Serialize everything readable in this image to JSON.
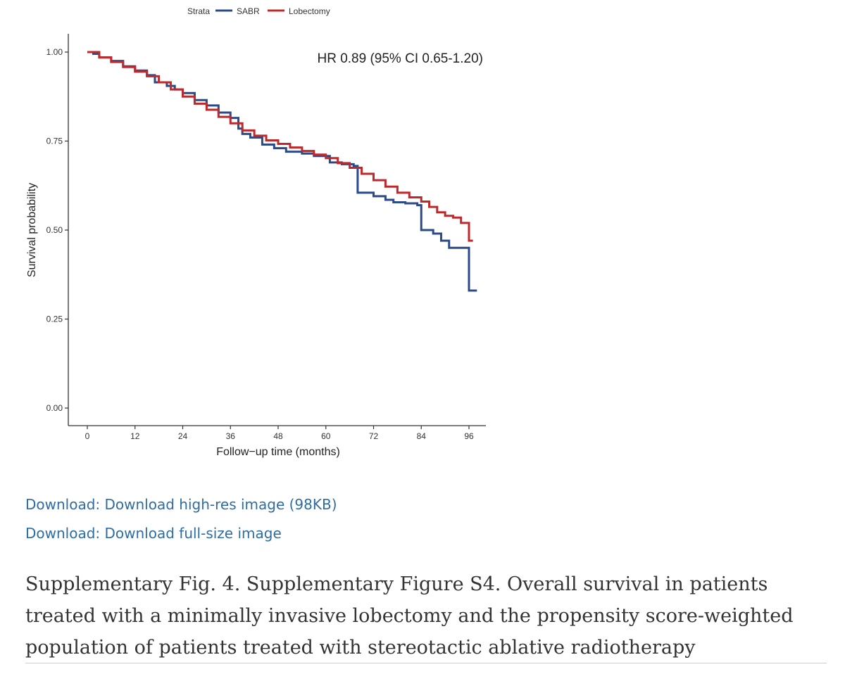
{
  "chart_data": {
    "type": "line",
    "step": true,
    "title": "",
    "xlabel": "Follow−up time (months)",
    "ylabel": "Survival probability",
    "xlim": [
      -4,
      100
    ],
    "ylim": [
      -0.05,
      1.05
    ],
    "x_ticks": [
      0,
      12,
      24,
      36,
      48,
      60,
      72,
      84,
      96
    ],
    "x_tick_labels": [
      "0",
      "12",
      "24",
      "36",
      "48",
      "60",
      "72",
      "84",
      "96"
    ],
    "y_ticks": [
      0.0,
      0.25,
      0.5,
      0.75,
      1.0
    ],
    "y_tick_labels": [
      "0.00",
      "0.25",
      "0.50",
      "0.75",
      "1.00"
    ],
    "legend": {
      "title": "Strata",
      "position": "top",
      "entries": [
        "SABR",
        "Lobectomy"
      ]
    },
    "annotation": "HR 0.89 (95% CI 0.65-1.20)",
    "colors": {
      "SABR": "#2b4a8a",
      "Lobectomy": "#c0292b",
      "axis": "#333333"
    },
    "series": [
      {
        "name": "SABR",
        "color": "#2b4a8a",
        "points": [
          [
            0,
            1.0
          ],
          [
            1.5,
            0.995
          ],
          [
            3,
            0.985
          ],
          [
            6,
            0.975
          ],
          [
            9,
            0.96
          ],
          [
            12,
            0.948
          ],
          [
            15,
            0.935
          ],
          [
            17,
            0.915
          ],
          [
            20,
            0.905
          ],
          [
            22,
            0.895
          ],
          [
            24,
            0.885
          ],
          [
            27,
            0.865
          ],
          [
            30,
            0.85
          ],
          [
            33,
            0.83
          ],
          [
            36,
            0.815
          ],
          [
            38,
            0.785
          ],
          [
            39,
            0.77
          ],
          [
            41,
            0.76
          ],
          [
            44,
            0.74
          ],
          [
            47,
            0.73
          ],
          [
            50,
            0.72
          ],
          [
            54,
            0.715
          ],
          [
            57,
            0.708
          ],
          [
            61,
            0.69
          ],
          [
            64,
            0.685
          ],
          [
            67,
            0.68
          ],
          [
            68,
            0.605
          ],
          [
            72,
            0.595
          ],
          [
            75,
            0.585
          ],
          [
            77,
            0.578
          ],
          [
            80,
            0.575
          ],
          [
            83,
            0.57
          ],
          [
            84,
            0.5
          ],
          [
            87,
            0.49
          ],
          [
            89,
            0.47
          ],
          [
            91,
            0.45
          ],
          [
            96,
            0.33
          ],
          [
            98,
            0.33
          ]
        ]
      },
      {
        "name": "Lobectomy",
        "color": "#c0292b",
        "points": [
          [
            0,
            1.0
          ],
          [
            3,
            0.985
          ],
          [
            6,
            0.972
          ],
          [
            9,
            0.958
          ],
          [
            12,
            0.945
          ],
          [
            15,
            0.932
          ],
          [
            18,
            0.915
          ],
          [
            21,
            0.895
          ],
          [
            24,
            0.875
          ],
          [
            27,
            0.855
          ],
          [
            30,
            0.838
          ],
          [
            33,
            0.818
          ],
          [
            36,
            0.8
          ],
          [
            39,
            0.78
          ],
          [
            42,
            0.765
          ],
          [
            45,
            0.752
          ],
          [
            48,
            0.742
          ],
          [
            51,
            0.732
          ],
          [
            54,
            0.722
          ],
          [
            57,
            0.712
          ],
          [
            60,
            0.702
          ],
          [
            63,
            0.688
          ],
          [
            66,
            0.675
          ],
          [
            69,
            0.658
          ],
          [
            72,
            0.64
          ],
          [
            75,
            0.622
          ],
          [
            78,
            0.605
          ],
          [
            81,
            0.592
          ],
          [
            84,
            0.58
          ],
          [
            86,
            0.565
          ],
          [
            88,
            0.55
          ],
          [
            90,
            0.54
          ],
          [
            92,
            0.535
          ],
          [
            94,
            0.52
          ],
          [
            96,
            0.47
          ],
          [
            97,
            0.47
          ]
        ]
      }
    ]
  },
  "links": [
    {
      "label": "Download: Download high-res image (98KB)"
    },
    {
      "label": "Download: Download full-size image"
    }
  ],
  "caption": "Supplementary Fig. 4. Supplementary Figure S4. Overall survival in patients treated with a minimally invasive lobectomy and the propensity score-weighted population of patients treated with stereotactic ablative radiotherapy"
}
